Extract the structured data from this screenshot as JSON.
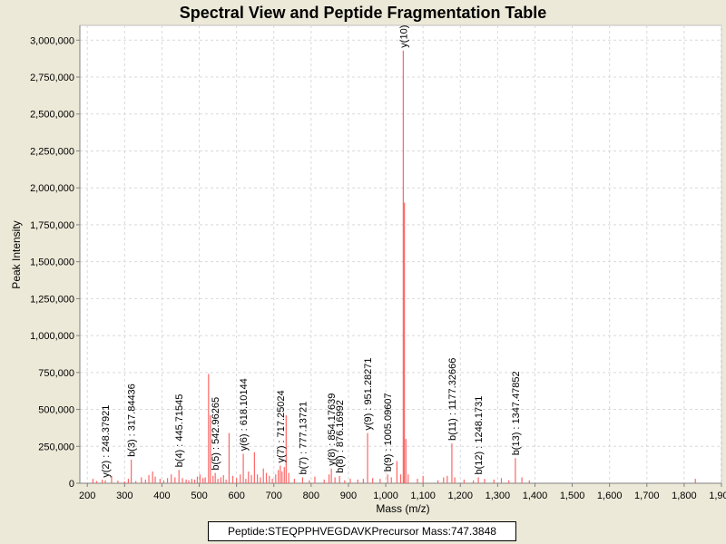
{
  "chart_data": {
    "type": "bar",
    "title": "Spectral View and Peptide Fragmentation Table",
    "xlabel": "Mass (m/z)",
    "ylabel": "Peak Intensity",
    "xlim": [
      180,
      1900
    ],
    "ylim": [
      0,
      3100000
    ],
    "x_ticks": [
      200,
      300,
      400,
      500,
      600,
      700,
      800,
      900,
      1000,
      1100,
      1200,
      1300,
      1400,
      1500,
      1600,
      1700,
      1800,
      1900
    ],
    "x_tick_labels": [
      "200",
      "300",
      "400",
      "500",
      "600",
      "700",
      "800",
      "900",
      "1,000",
      "1,100",
      "1,200",
      "1,300",
      "1,400",
      "1,500",
      "1,600",
      "1,700",
      "1,800",
      "1,900"
    ],
    "y_ticks": [
      0,
      250000,
      500000,
      750000,
      1000000,
      1250000,
      1500000,
      1750000,
      2000000,
      2250000,
      2500000,
      2750000,
      3000000
    ],
    "y_tick_labels": [
      "0",
      "250,000",
      "500,000",
      "750,000",
      "1,000,000",
      "1,250,000",
      "1,500,000",
      "1,750,000",
      "2,000,000",
      "2,250,000",
      "2,500,000",
      "2,750,000",
      "3,000,000"
    ],
    "grid": true,
    "bar_color": "#ff6666",
    "peaks": [
      {
        "x": 215,
        "y": 30000
      },
      {
        "x": 225,
        "y": 15000
      },
      {
        "x": 240,
        "y": 25000
      },
      {
        "x": 248.4,
        "y": 20000
      },
      {
        "x": 265,
        "y": 50000
      },
      {
        "x": 282,
        "y": 18000
      },
      {
        "x": 300,
        "y": 12000
      },
      {
        "x": 310,
        "y": 30000
      },
      {
        "x": 317.8,
        "y": 160000
      },
      {
        "x": 330,
        "y": 15000
      },
      {
        "x": 345,
        "y": 40000
      },
      {
        "x": 356,
        "y": 25000
      },
      {
        "x": 365,
        "y": 55000
      },
      {
        "x": 375,
        "y": 80000
      },
      {
        "x": 382,
        "y": 45000
      },
      {
        "x": 395,
        "y": 30000
      },
      {
        "x": 405,
        "y": 20000
      },
      {
        "x": 415,
        "y": 35000
      },
      {
        "x": 425,
        "y": 60000
      },
      {
        "x": 435,
        "y": 40000
      },
      {
        "x": 445.7,
        "y": 90000
      },
      {
        "x": 455,
        "y": 35000
      },
      {
        "x": 465,
        "y": 25000
      },
      {
        "x": 472,
        "y": 20000
      },
      {
        "x": 480,
        "y": 30000
      },
      {
        "x": 488,
        "y": 25000
      },
      {
        "x": 495,
        "y": 45000
      },
      {
        "x": 502,
        "y": 60000
      },
      {
        "x": 510,
        "y": 35000
      },
      {
        "x": 516,
        "y": 40000
      },
      {
        "x": 525,
        "y": 740000
      },
      {
        "x": 530,
        "y": 460000
      },
      {
        "x": 537,
        "y": 50000
      },
      {
        "x": 542.9,
        "y": 70000
      },
      {
        "x": 550,
        "y": 30000
      },
      {
        "x": 558,
        "y": 40000
      },
      {
        "x": 565,
        "y": 55000
      },
      {
        "x": 572,
        "y": 25000
      },
      {
        "x": 580,
        "y": 340000
      },
      {
        "x": 590,
        "y": 50000
      },
      {
        "x": 600,
        "y": 35000
      },
      {
        "x": 610,
        "y": 60000
      },
      {
        "x": 618.1,
        "y": 200000
      },
      {
        "x": 625,
        "y": 30000
      },
      {
        "x": 632,
        "y": 80000
      },
      {
        "x": 640,
        "y": 55000
      },
      {
        "x": 648,
        "y": 210000
      },
      {
        "x": 656,
        "y": 60000
      },
      {
        "x": 664,
        "y": 40000
      },
      {
        "x": 672,
        "y": 100000
      },
      {
        "x": 680,
        "y": 70000
      },
      {
        "x": 688,
        "y": 50000
      },
      {
        "x": 696,
        "y": 30000
      },
      {
        "x": 705,
        "y": 60000
      },
      {
        "x": 712,
        "y": 90000
      },
      {
        "x": 717.3,
        "y": 120000
      },
      {
        "x": 722,
        "y": 80000
      },
      {
        "x": 728,
        "y": 110000
      },
      {
        "x": 733,
        "y": 460000
      },
      {
        "x": 740,
        "y": 70000
      },
      {
        "x": 755,
        "y": 30000
      },
      {
        "x": 777.1,
        "y": 40000
      },
      {
        "x": 795,
        "y": 20000
      },
      {
        "x": 810,
        "y": 45000
      },
      {
        "x": 835,
        "y": 25000
      },
      {
        "x": 848,
        "y": 60000
      },
      {
        "x": 854.2,
        "y": 100000
      },
      {
        "x": 864,
        "y": 40000
      },
      {
        "x": 876.2,
        "y": 50000
      },
      {
        "x": 890,
        "y": 20000
      },
      {
        "x": 905,
        "y": 30000
      },
      {
        "x": 925,
        "y": 25000
      },
      {
        "x": 940,
        "y": 30000
      },
      {
        "x": 951.3,
        "y": 340000
      },
      {
        "x": 965,
        "y": 35000
      },
      {
        "x": 985,
        "y": 30000
      },
      {
        "x": 1005.1,
        "y": 60000
      },
      {
        "x": 1015,
        "y": 40000
      },
      {
        "x": 1030,
        "y": 150000
      },
      {
        "x": 1040,
        "y": 60000
      },
      {
        "x": 1047,
        "y": 2930000
      },
      {
        "x": 1050,
        "y": 1900000
      },
      {
        "x": 1054,
        "y": 300000
      },
      {
        "x": 1060,
        "y": 60000
      },
      {
        "x": 1085,
        "y": 30000
      },
      {
        "x": 1100,
        "y": 50000
      },
      {
        "x": 1140,
        "y": 20000
      },
      {
        "x": 1155,
        "y": 40000
      },
      {
        "x": 1165,
        "y": 50000
      },
      {
        "x": 1177.3,
        "y": 270000
      },
      {
        "x": 1185,
        "y": 40000
      },
      {
        "x": 1210,
        "y": 25000
      },
      {
        "x": 1235,
        "y": 20000
      },
      {
        "x": 1248.2,
        "y": 40000
      },
      {
        "x": 1265,
        "y": 30000
      },
      {
        "x": 1290,
        "y": 25000
      },
      {
        "x": 1310,
        "y": 35000
      },
      {
        "x": 1330,
        "y": 20000
      },
      {
        "x": 1347.5,
        "y": 170000
      },
      {
        "x": 1365,
        "y": 40000
      },
      {
        "x": 1385,
        "y": 20000
      },
      {
        "x": 1830,
        "y": 30000
      }
    ],
    "annotations": [
      {
        "label": "y(2) : 248.37921",
        "x": 248.4,
        "y": 20000
      },
      {
        "label": "b(3) : 317.84436",
        "x": 317.8,
        "y": 160000
      },
      {
        "label": "b(4) : 445.71545",
        "x": 445.7,
        "y": 90000
      },
      {
        "label": "b(5) : 542.96265",
        "x": 542.9,
        "y": 70000
      },
      {
        "label": "y(6) : 618.10144",
        "x": 618.1,
        "y": 200000
      },
      {
        "label": "y(7) : 717.25024",
        "x": 717.3,
        "y": 120000
      },
      {
        "label": "b(7) : 777.13721",
        "x": 777.1,
        "y": 40000
      },
      {
        "label": "y(8) : 854.17639",
        "x": 854.2,
        "y": 100000
      },
      {
        "label": "b(8) : 876.16992",
        "x": 876.2,
        "y": 50000
      },
      {
        "label": "y(9) : 951.28271",
        "x": 951.3,
        "y": 340000
      },
      {
        "label": "b(9) : 1005.09607",
        "x": 1005.1,
        "y": 60000
      },
      {
        "label": "y(10)",
        "x": 1047,
        "y": 2930000
      },
      {
        "label": "b(11) : 1177.32666",
        "x": 1177.3,
        "y": 270000
      },
      {
        "label": "b(12) : 1248.1731",
        "x": 1248.2,
        "y": 40000
      },
      {
        "label": "b(13) : 1347.47852",
        "x": 1347.5,
        "y": 170000
      }
    ]
  },
  "footer": {
    "peptide_label": "Peptide:",
    "peptide": "STEQPPHVEGDAVK",
    "precursor_label": "Precursor Mass:",
    "precursor_mass": "747.3848"
  }
}
